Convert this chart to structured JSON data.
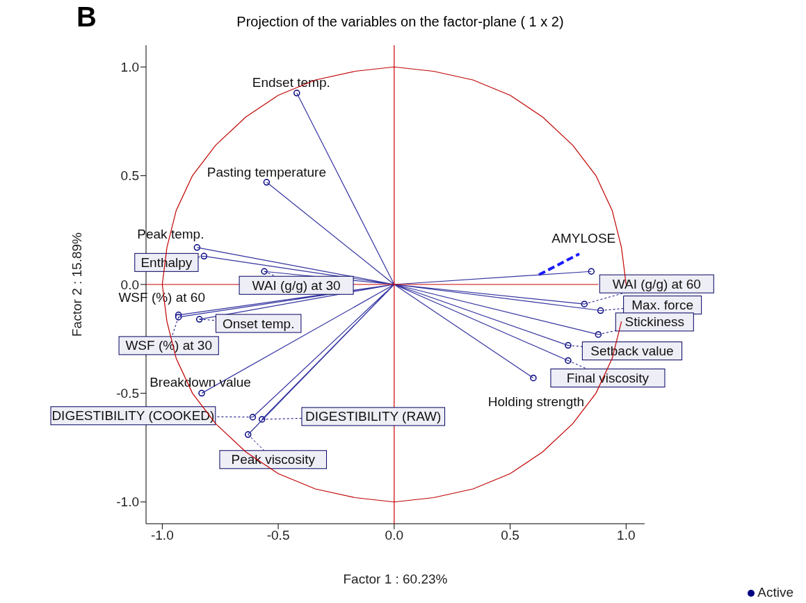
{
  "chart_data": {
    "type": "scatter",
    "title": "Projection of the variables on the factor-plane ( 1 x  2)",
    "xlabel": "Factor 1 : 60.23%",
    "ylabel": "Factor 2 : 15.89%",
    "xlim": [
      -1.07,
      1.08
    ],
    "ylim": [
      -1.1,
      1.1
    ],
    "xticks": [
      {
        "value": -1,
        "label": "-1.0"
      },
      {
        "value": -0.5,
        "label": "-0.5"
      },
      {
        "value": 0,
        "label": "0.0"
      },
      {
        "value": 0.5,
        "label": "0.5"
      },
      {
        "value": 1,
        "label": "1.0"
      }
    ],
    "yticks": [
      {
        "value": -1,
        "label": "-1.0"
      },
      {
        "value": -0.5,
        "label": "-0.5"
      },
      {
        "value": 0,
        "label": "0.0"
      },
      {
        "value": 0.5,
        "label": "0.5"
      },
      {
        "value": 1,
        "label": "1.0"
      }
    ],
    "marker": "circle",
    "legend": "bottom right",
    "series": [
      {
        "name": "Active",
        "color": "#000080",
        "x": [
          -0.42,
          -0.55,
          -0.85,
          -0.82,
          -0.56,
          -0.93,
          -0.93,
          -0.84,
          -0.83,
          -0.61,
          -0.57,
          -0.63,
          0.85,
          0.82,
          0.89,
          0.88,
          0.75,
          0.75,
          0.6
        ],
        "values": [
          0.88,
          0.47,
          0.17,
          0.13,
          0.06,
          -0.14,
          -0.15,
          -0.16,
          -0.5,
          -0.61,
          -0.62,
          -0.69,
          0.06,
          -0.09,
          -0.12,
          -0.23,
          -0.28,
          -0.35,
          -0.43
        ]
      },
      {
        "type": "line",
        "marker": "none",
        "color": "#3333a0",
        "x": [
          0,
          -0.42,
          0,
          -0.55,
          0,
          -0.85,
          0,
          -0.82,
          0,
          -0.56,
          0,
          -0.93,
          0,
          -0.93,
          0,
          -0.84,
          0,
          -0.83,
          0,
          -0.61,
          0,
          -0.57,
          0,
          -0.63,
          0,
          0.85,
          0,
          0.82,
          0,
          0.89,
          0,
          0.88,
          0,
          0.75,
          0,
          0.75,
          0,
          0.6
        ],
        "values": [
          0,
          0.88,
          0,
          0.47,
          0,
          0.17,
          0,
          0.13,
          0,
          0.06,
          0,
          -0.14,
          0,
          -0.15,
          0,
          -0.16,
          0,
          -0.5,
          0,
          -0.61,
          0,
          -0.62,
          0,
          -0.69,
          0,
          0.06,
          0,
          -0.09,
          0,
          -0.12,
          0,
          -0.23,
          0,
          -0.28,
          0,
          -0.35,
          0,
          -0.43
        ]
      },
      {
        "type": "line",
        "marker": "none",
        "color": "#cc0000",
        "x": [
          0,
          0
        ],
        "values": [
          -1.1,
          1.1
        ]
      },
      {
        "type": "line",
        "marker": "none",
        "color": "#cc0000",
        "x": [
          -1.07,
          0.88
        ],
        "values": [
          0,
          0
        ]
      },
      {
        "type": "line",
        "marker": "none",
        "color": "#c00000",
        "x": [
          1,
          0.98,
          0.94,
          0.87,
          0.77,
          0.64,
          0.5,
          0.34,
          0.17,
          0,
          -0.17,
          -0.34,
          -0.5,
          -0.64,
          -0.77,
          -0.87,
          -0.94,
          -0.98,
          -1,
          -0.98,
          -0.94,
          -0.87,
          -0.77,
          -0.64,
          -0.5,
          -0.34,
          -0.17,
          0,
          0.17,
          0.34,
          0.5,
          0.64,
          0.77,
          0.87,
          0.94,
          0.98
        ],
        "values": [
          0,
          0.17,
          0.34,
          0.5,
          0.64,
          0.77,
          0.87,
          0.94,
          0.98,
          1,
          0.98,
          0.94,
          0.87,
          0.77,
          0.64,
          0.5,
          0.34,
          0.17,
          0,
          -0.17,
          -0.34,
          -0.5,
          -0.64,
          -0.77,
          -0.87,
          -0.94,
          -0.98,
          -1,
          -0.98,
          -0.94,
          -0.87,
          -0.77,
          -0.64,
          -0.5,
          -0.34,
          -0.17
        ]
      }
    ],
    "annotations": [
      "B",
      {
        "text": "Endset temp.",
        "x": -0.42,
        "y": 0.88
      },
      {
        "text": "Pasting temperature",
        "x": -0.55,
        "y": 0.47
      },
      {
        "text": "Peak temp.",
        "x": -0.85,
        "y": 0.17
      },
      {
        "text": "Enthalpy",
        "x": -0.82,
        "y": 0.13
      },
      {
        "text": "WAI (g/g) at 30",
        "x": -0.56,
        "y": 0.06
      },
      {
        "text": "WSF (%) at 60",
        "x": -0.93,
        "y": -0.14
      },
      {
        "text": "WSF (%) at 30",
        "x": -0.93,
        "y": -0.15
      },
      {
        "text": "Onset temp.",
        "x": -0.84,
        "y": -0.16
      },
      {
        "text": "Breakdown value",
        "x": -0.83,
        "y": -0.5
      },
      {
        "text": "DIGESTIBILITY (COOKED)",
        "x": -0.61,
        "y": -0.61
      },
      {
        "text": "DIGESTIBILITY (RAW)",
        "x": -0.57,
        "y": -0.62
      },
      {
        "text": "Peak viscosity",
        "x": -0.63,
        "y": -0.69
      },
      {
        "text": "AMYLOSE",
        "x": 0.85,
        "y": 0.06
      },
      {
        "text": "WAI (g/g) at 60",
        "x": 0.82,
        "y": -0.09
      },
      {
        "text": "Max. force",
        "x": 0.89,
        "y": -0.12
      },
      {
        "text": "Stickiness",
        "x": 0.88,
        "y": -0.23
      },
      {
        "text": "Setback value",
        "x": 0.75,
        "y": -0.28
      },
      {
        "text": "Final viscosity",
        "x": 0.75,
        "y": -0.35
      },
      {
        "text": "Holding strength",
        "x": 0.6,
        "y": -0.43
      }
    ]
  }
}
